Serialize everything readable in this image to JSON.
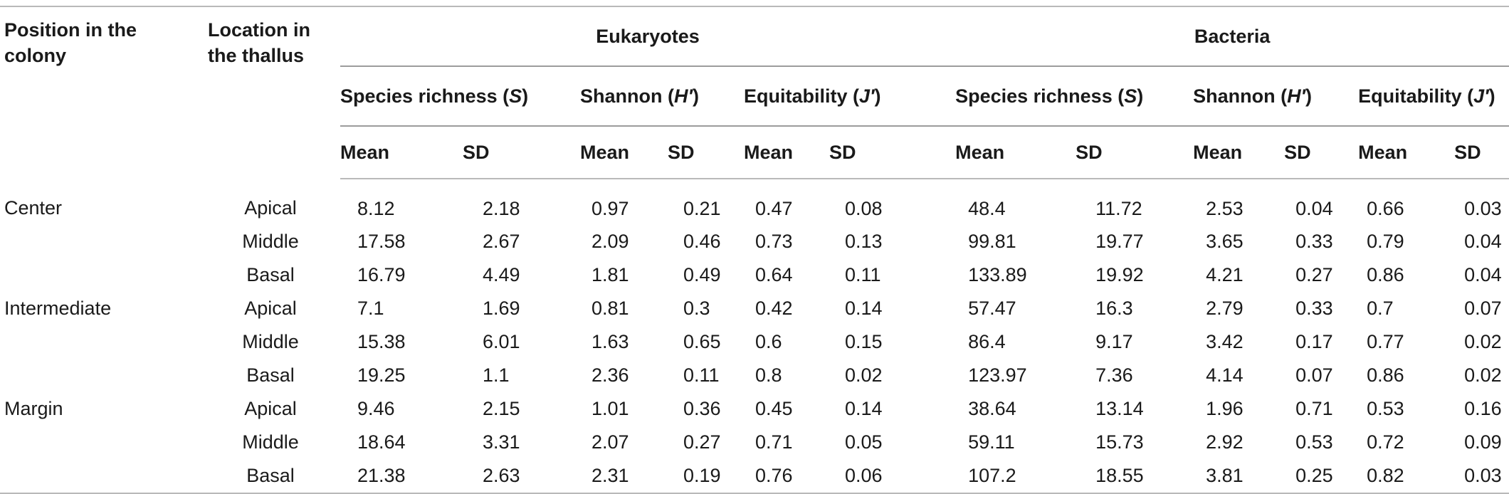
{
  "headers": {
    "position": "Position in the colony",
    "location": "Location in the thallus",
    "group_eukaryotes": "Eukaryotes",
    "group_bacteria": "Bacteria",
    "species_richness": "Species richness (",
    "species_richness_sym": "S",
    "shannon": "Shannon (",
    "shannon_sym": "H′",
    "equitability": "Equitability (",
    "equitability_sym": "J′",
    "close_paren": ")",
    "mean": "Mean",
    "sd": "SD"
  },
  "rows": [
    {
      "position": "Center",
      "location": "Apical",
      "vals": [
        "8.12",
        "2.18",
        "0.97",
        "0.21",
        "0.47",
        "0.08",
        "48.4",
        "11.72",
        "2.53",
        "0.04",
        "0.66",
        "0.03"
      ]
    },
    {
      "position": "",
      "location": "Middle",
      "vals": [
        "17.58",
        "2.67",
        "2.09",
        "0.46",
        "0.73",
        "0.13",
        "99.81",
        "19.77",
        "3.65",
        "0.33",
        "0.79",
        "0.04"
      ]
    },
    {
      "position": "",
      "location": "Basal",
      "vals": [
        "16.79",
        "4.49",
        "1.81",
        "0.49",
        "0.64",
        "0.11",
        "133.89",
        "19.92",
        "4.21",
        "0.27",
        "0.86",
        "0.04"
      ]
    },
    {
      "position": "Intermediate",
      "location": "Apical",
      "vals": [
        "7.1",
        "1.69",
        "0.81",
        "0.3",
        "0.42",
        "0.14",
        "57.47",
        "16.3",
        "2.79",
        "0.33",
        "0.7",
        "0.07"
      ]
    },
    {
      "position": "",
      "location": "Middle",
      "vals": [
        "15.38",
        "6.01",
        "1.63",
        "0.65",
        "0.6",
        "0.15",
        "86.4",
        "9.17",
        "3.42",
        "0.17",
        "0.77",
        "0.02"
      ]
    },
    {
      "position": "",
      "location": "Basal",
      "vals": [
        "19.25",
        "1.1",
        "2.36",
        "0.11",
        "0.8",
        "0.02",
        "123.97",
        "7.36",
        "4.14",
        "0.07",
        "0.86",
        "0.02"
      ]
    },
    {
      "position": "Margin",
      "location": "Apical",
      "vals": [
        "9.46",
        "2.15",
        "1.01",
        "0.36",
        "0.45",
        "0.14",
        "38.64",
        "13.14",
        "1.96",
        "0.71",
        "0.53",
        "0.16"
      ]
    },
    {
      "position": "",
      "location": "Middle",
      "vals": [
        "18.64",
        "3.31",
        "2.07",
        "0.27",
        "0.71",
        "0.05",
        "59.11",
        "15.73",
        "2.92",
        "0.53",
        "0.72",
        "0.09"
      ]
    },
    {
      "position": "",
      "location": "Basal",
      "vals": [
        "21.38",
        "2.63",
        "2.31",
        "0.19",
        "0.76",
        "0.06",
        "107.2",
        "18.55",
        "3.81",
        "0.25",
        "0.82",
        "0.03"
      ]
    }
  ]
}
